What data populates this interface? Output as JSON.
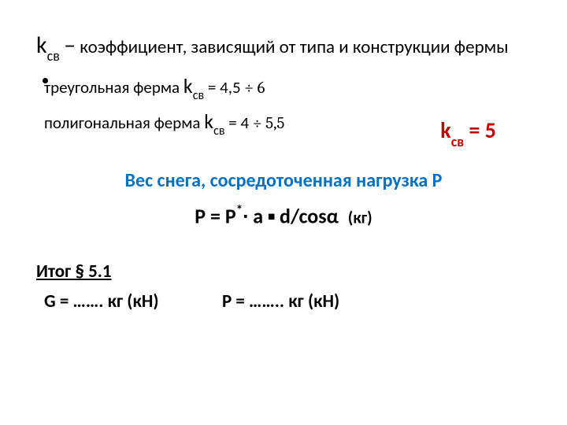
{
  "line1": {
    "k": "k",
    "ksub": "св",
    "dash": "–",
    "desc": "коэффициент, зависящий от типа и конструкции фермы"
  },
  "truss1": {
    "label": "треугольная ферма",
    "k": "k",
    "ksub": "св",
    "eq": "= 4,5",
    "range": "÷ 6"
  },
  "truss2": {
    "label": "полигональная ферма",
    "k": "k",
    "ksub": "св",
    "eq": "= 4",
    "range": "÷ 5,5"
  },
  "ksvVal": {
    "k": "k",
    "ksub": "св",
    "rest": "= 5"
  },
  "snowTitle": "Вес снега, сосредоточенная нагрузка Р",
  "formula": {
    "P": "Р = Р",
    "sup": "*",
    "mid": "∙ а ▪ d/cosα",
    "unit": "(кг)"
  },
  "sectionTitle": "Итог § 5.1",
  "results": {
    "g": "G = ……. кг (кН)",
    "p": "P = …….. кг (кН)"
  }
}
